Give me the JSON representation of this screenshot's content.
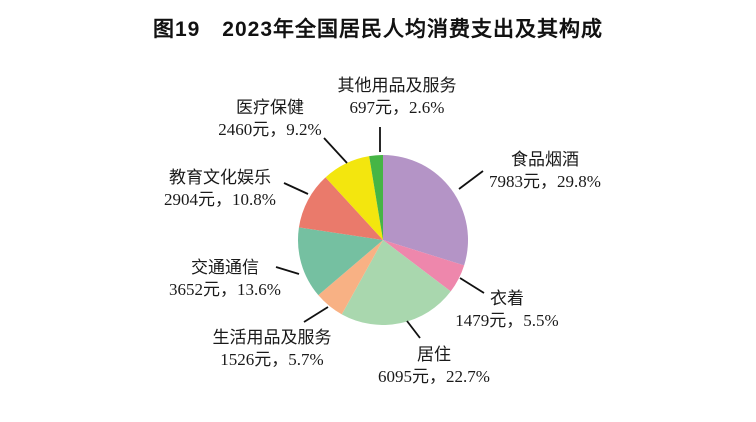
{
  "title": "图19　2023年全国居民人均消费支出及其构成",
  "chart_data": {
    "type": "pie",
    "title": "图19　2023年全国居民人均消费支出及其构成",
    "unit": "元",
    "start_angle_deg": 0,
    "direction": "clockwise",
    "legend_position": "none",
    "label_style": "outside-with-leader-lines",
    "slices": [
      {
        "name": "食品烟酒",
        "value": 7983,
        "percent": 29.8,
        "value_label": "7983元，29.8%",
        "color": "#b494c6"
      },
      {
        "name": "衣着",
        "value": 1479,
        "percent": 5.5,
        "value_label": "1479元，5.5%",
        "color": "#ee87ac"
      },
      {
        "name": "居住",
        "value": 6095,
        "percent": 22.7,
        "value_label": "6095元，22.7%",
        "color": "#a9d7ae"
      },
      {
        "name": "生活用品及服务",
        "value": 1526,
        "percent": 5.7,
        "value_label": "1526元，5.7%",
        "color": "#f8b184"
      },
      {
        "name": "交通通信",
        "value": 3652,
        "percent": 13.6,
        "value_label": "3652元，13.6%",
        "color": "#75c0a1"
      },
      {
        "name": "教育文化娱乐",
        "value": 2904,
        "percent": 10.8,
        "value_label": "2904元，10.8%",
        "color": "#ea7a6b"
      },
      {
        "name": "医疗保健",
        "value": 2460,
        "percent": 9.2,
        "value_label": "2460元，9.2%",
        "color": "#f3e60e"
      },
      {
        "name": "其他用品及服务",
        "value": 697,
        "percent": 2.6,
        "value_label": "697元，2.6%",
        "color": "#46b545"
      }
    ],
    "leader_line_color": "#111111",
    "text_color": "#1a1a1a",
    "background_color": "#ffffff"
  }
}
